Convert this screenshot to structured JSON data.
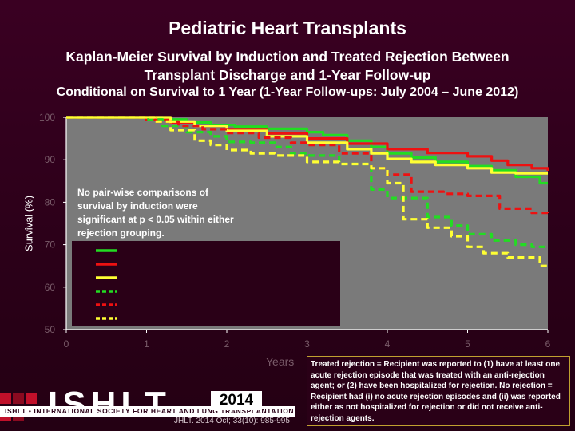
{
  "slide": {
    "title": "Pediatric Heart Transplants",
    "subtitle_1": "Kaplan-Meier Survival by Induction and Treated Rejection Between",
    "subtitle_2": "Transplant Discharge and 1-Year Follow-up",
    "subtitle_3": "Conditional on Survival to 1 Year (1-Year Follow-ups: July 2004 – June 2012)",
    "annotation": "No pair-wise comparisons of survival by induction were significant at p < 0.05 within either rejection grouping.",
    "footnote": "Treated rejection = Recipient was reported to (1) have at least one acute rejection episode that was treated with an anti-rejection agent; or (2) have been hospitalized for rejection. No rejection = Recipient had (i) no acute rejection episodes and (ii) was reported either as not hospitalized for rejection or did not receive anti-rejection agents.",
    "logo_text": "ISHLT",
    "society_name": "ISHLT • INTERNATIONAL SOCIETY FOR HEART AND LUNG TRANSPLANTATION",
    "year": "2014",
    "citation": "JHLT. 2014 Oct; 33(10): 985-995"
  },
  "colors": {
    "background": "#2a0017",
    "plot_area": "#7a7a7a",
    "green": "#22dd22",
    "red": "#ee1111",
    "yellow": "#ffff33",
    "axis": "#ffffff",
    "footnote_border": "#c0a030"
  },
  "chart_data": {
    "type": "line",
    "title": "",
    "xlabel": "Years",
    "ylabel": "Survival (%)",
    "xlim": [
      0,
      6
    ],
    "ylim": [
      50,
      100
    ],
    "x_ticks": [
      "0",
      "1",
      "2",
      "3",
      "4",
      "5",
      "6"
    ],
    "y_ticks": [
      "50",
      "60",
      "70",
      "80",
      "90",
      "100"
    ],
    "grid": false,
    "legend": "left, inside plot (line keys only, labels not legible)",
    "series": [
      {
        "color": "green",
        "style": "solid",
        "x": [
          0,
          1.0,
          1.2,
          1.5,
          1.8,
          2.1,
          2.5,
          3.0,
          3.2,
          3.5,
          3.8,
          4.0,
          4.3,
          4.6,
          5.0,
          5.3,
          5.6,
          5.9,
          6.0
        ],
        "y": [
          100,
          100,
          99.5,
          98.8,
          98.2,
          97.8,
          97.3,
          96.5,
          95.8,
          94.5,
          93.0,
          91.5,
          90.5,
          89.5,
          88.5,
          87.5,
          86.0,
          84.5,
          84.5
        ]
      },
      {
        "color": "red",
        "style": "solid",
        "x": [
          0,
          0.8,
          1.0,
          1.3,
          1.6,
          2.0,
          2.5,
          3.0,
          3.5,
          4.0,
          4.5,
          5.0,
          5.3,
          5.5,
          5.8,
          6.0
        ],
        "y": [
          100,
          100,
          99.4,
          98.8,
          98.0,
          97.2,
          96.2,
          95.0,
          93.8,
          92.5,
          91.6,
          90.8,
          89.8,
          88.8,
          88.0,
          87.4
        ]
      },
      {
        "color": "yellow",
        "style": "solid",
        "x": [
          0,
          1.0,
          1.3,
          1.6,
          2.0,
          2.5,
          3.0,
          3.5,
          3.8,
          4.0,
          4.3,
          4.6,
          5.0,
          5.3,
          5.6,
          6.0
        ],
        "y": [
          100,
          100,
          99.0,
          98.0,
          96.8,
          95.5,
          94.0,
          92.5,
          91.5,
          90.2,
          89.5,
          88.8,
          88.0,
          87.0,
          86.8,
          86.8
        ]
      },
      {
        "color": "green",
        "style": "dashed",
        "x": [
          0,
          1.0,
          1.2,
          1.5,
          1.8,
          2.0,
          2.3,
          2.6,
          2.8,
          3.0,
          3.4,
          3.8,
          4.0,
          4.5,
          4.8,
          5.0,
          5.3,
          5.6,
          5.8,
          6.0
        ],
        "y": [
          100,
          99.5,
          98.0,
          96.5,
          95.5,
          94.2,
          94.0,
          93.0,
          91.5,
          91.0,
          89.0,
          83.0,
          81.0,
          76.5,
          74.5,
          72.5,
          71.0,
          70.0,
          69.5,
          69.5
        ]
      },
      {
        "color": "red",
        "style": "dashed",
        "x": [
          0,
          0.9,
          1.1,
          1.4,
          1.7,
          2.0,
          2.4,
          2.8,
          3.0,
          3.4,
          3.8,
          4.0,
          4.3,
          4.7,
          5.0,
          5.4,
          5.8,
          6.0
        ],
        "y": [
          100,
          100,
          99.0,
          98.0,
          97.2,
          96.3,
          95.2,
          94.0,
          93.5,
          91.5,
          88.0,
          86.5,
          82.5,
          82.0,
          81.5,
          78.5,
          77.5,
          77.0
        ]
      },
      {
        "color": "yellow",
        "style": "dashed",
        "x": [
          0,
          0.9,
          1.1,
          1.3,
          1.6,
          1.8,
          2.0,
          2.3,
          2.6,
          3.0,
          3.4,
          3.8,
          4.0,
          4.2,
          4.5,
          4.8,
          5.0,
          5.2,
          5.5,
          5.8,
          5.9,
          6.0
        ],
        "y": [
          100,
          100,
          99.0,
          97.0,
          94.5,
          93.5,
          92.3,
          91.5,
          91.0,
          89.5,
          89.0,
          88.0,
          84.5,
          76.0,
          74.0,
          72.0,
          69.5,
          68.0,
          67.0,
          67.0,
          65.0,
          65.0
        ]
      }
    ]
  }
}
